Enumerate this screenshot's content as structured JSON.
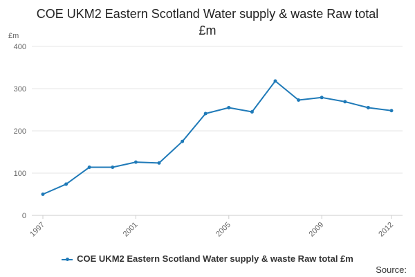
{
  "chart_data": {
    "type": "line",
    "title": "COE UKM2 Eastern Scotland Water supply & waste Raw total £m",
    "ylabel": "£m",
    "xlabel": "",
    "ylim": [
      0,
      400
    ],
    "yticks": [
      0,
      100,
      200,
      300,
      400
    ],
    "xlim": [
      1997,
      2012
    ],
    "xticks": [
      1997,
      2001,
      2005,
      2009,
      2012
    ],
    "grid": true,
    "legend_position": "bottom",
    "series": [
      {
        "name": "COE UKM2 Eastern Scotland Water supply & waste Raw total £m",
        "color": "#1f7ab8",
        "x": [
          1997,
          1998,
          1999,
          2000,
          2001,
          2002,
          2003,
          2004,
          2005,
          2006,
          2007,
          2008,
          2009,
          2010,
          2011,
          2012
        ],
        "values": [
          50,
          74,
          114,
          114,
          126,
          124,
          175,
          241,
          255,
          245,
          318,
          273,
          279,
          269,
          255,
          248
        ]
      }
    ]
  },
  "source_label": "Source:"
}
